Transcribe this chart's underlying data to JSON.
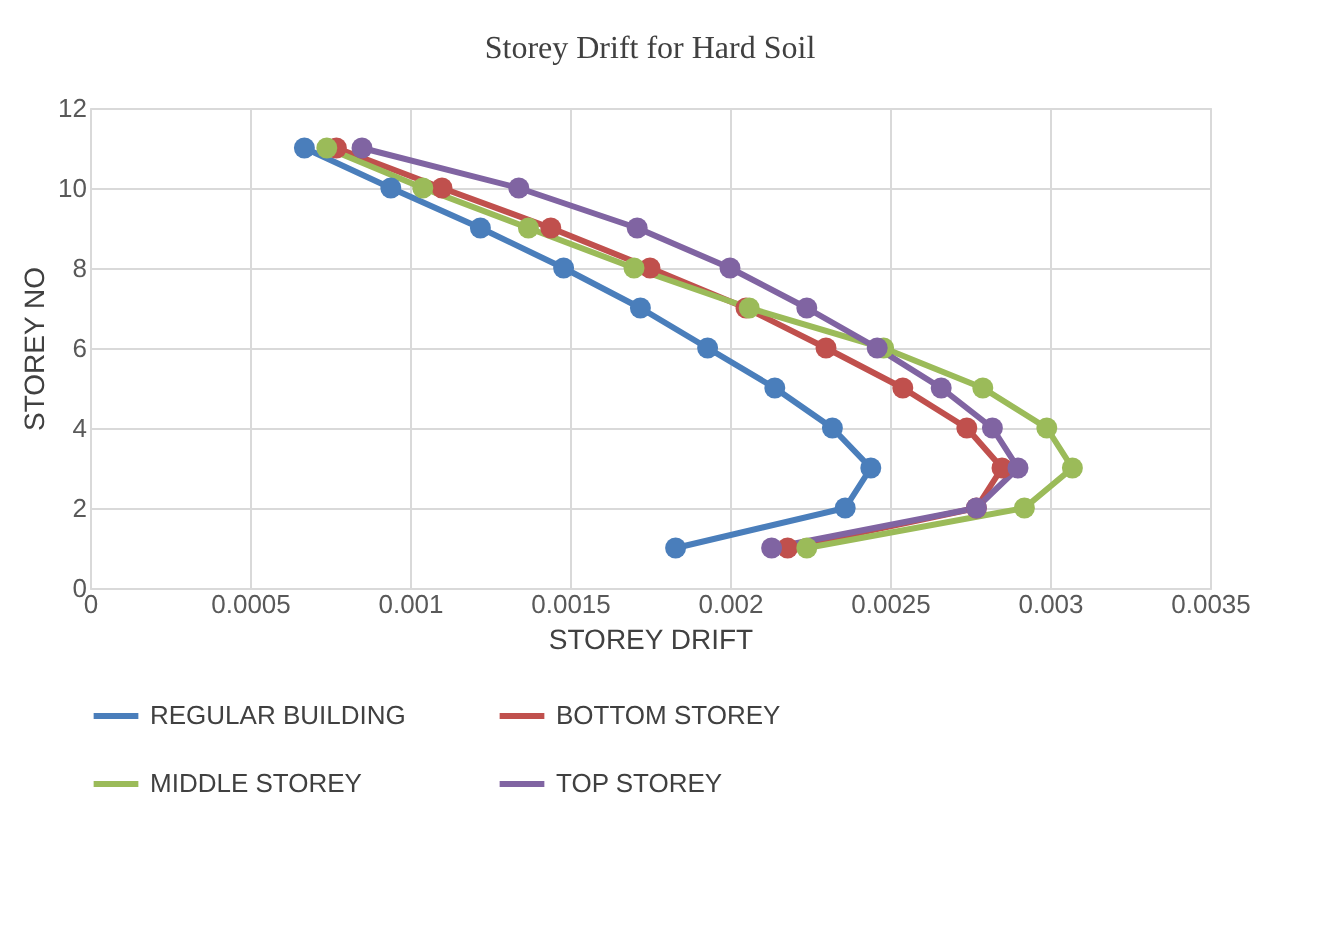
{
  "chart_data": {
    "type": "line",
    "title": "Storey Drift for Hard Soil",
    "xlabel": "STOREY DRIFT",
    "ylabel": "STOREY NO",
    "xlim": [
      0,
      0.0035
    ],
    "xticks": [
      0,
      0.0005,
      0.001,
      0.0015,
      0.002,
      0.0025,
      0.003,
      0.0035
    ],
    "ylim": [
      0,
      12
    ],
    "yticks": [
      0,
      2,
      4,
      6,
      8,
      10,
      12
    ],
    "grid": true,
    "legend": "bottom",
    "marker": "circle",
    "line_style": "solid",
    "series": [
      {
        "name": "REGULAR BUILDING",
        "color": "#4a7ebb",
        "x": [
          0.00183,
          0.00236,
          0.00244,
          0.00232,
          0.00214,
          0.00193,
          0.00172,
          0.00148,
          0.00122,
          0.00094,
          0.00067
        ],
        "values": [
          1,
          2,
          3,
          4,
          5,
          6,
          7,
          8,
          9,
          10,
          11
        ]
      },
      {
        "name": "BOTTOM STOREY",
        "color": "#c0504d",
        "x": [
          0.00218,
          0.00277,
          0.00285,
          0.00274,
          0.00254,
          0.0023,
          0.00205,
          0.00175,
          0.00144,
          0.0011,
          0.00077
        ],
        "values": [
          1,
          2,
          3,
          4,
          5,
          6,
          7,
          8,
          9,
          10,
          11
        ]
      },
      {
        "name": "MIDDLE STOREY",
        "color": "#9bbb59",
        "x": [
          0.00224,
          0.00292,
          0.00307,
          0.00299,
          0.00279,
          0.00248,
          0.00206,
          0.0017,
          0.00137,
          0.00104,
          0.00074
        ],
        "values": [
          1,
          2,
          3,
          4,
          5,
          6,
          7,
          8,
          9,
          10,
          11
        ]
      },
      {
        "name": "TOP STOREY",
        "color": "#8064a2",
        "x": [
          0.00213,
          0.00277,
          0.0029,
          0.00282,
          0.00266,
          0.00246,
          0.00224,
          0.002,
          0.00171,
          0.00134,
          0.00085
        ],
        "values": [
          1,
          2,
          3,
          4,
          5,
          6,
          7,
          8,
          9,
          10,
          11
        ]
      }
    ]
  }
}
